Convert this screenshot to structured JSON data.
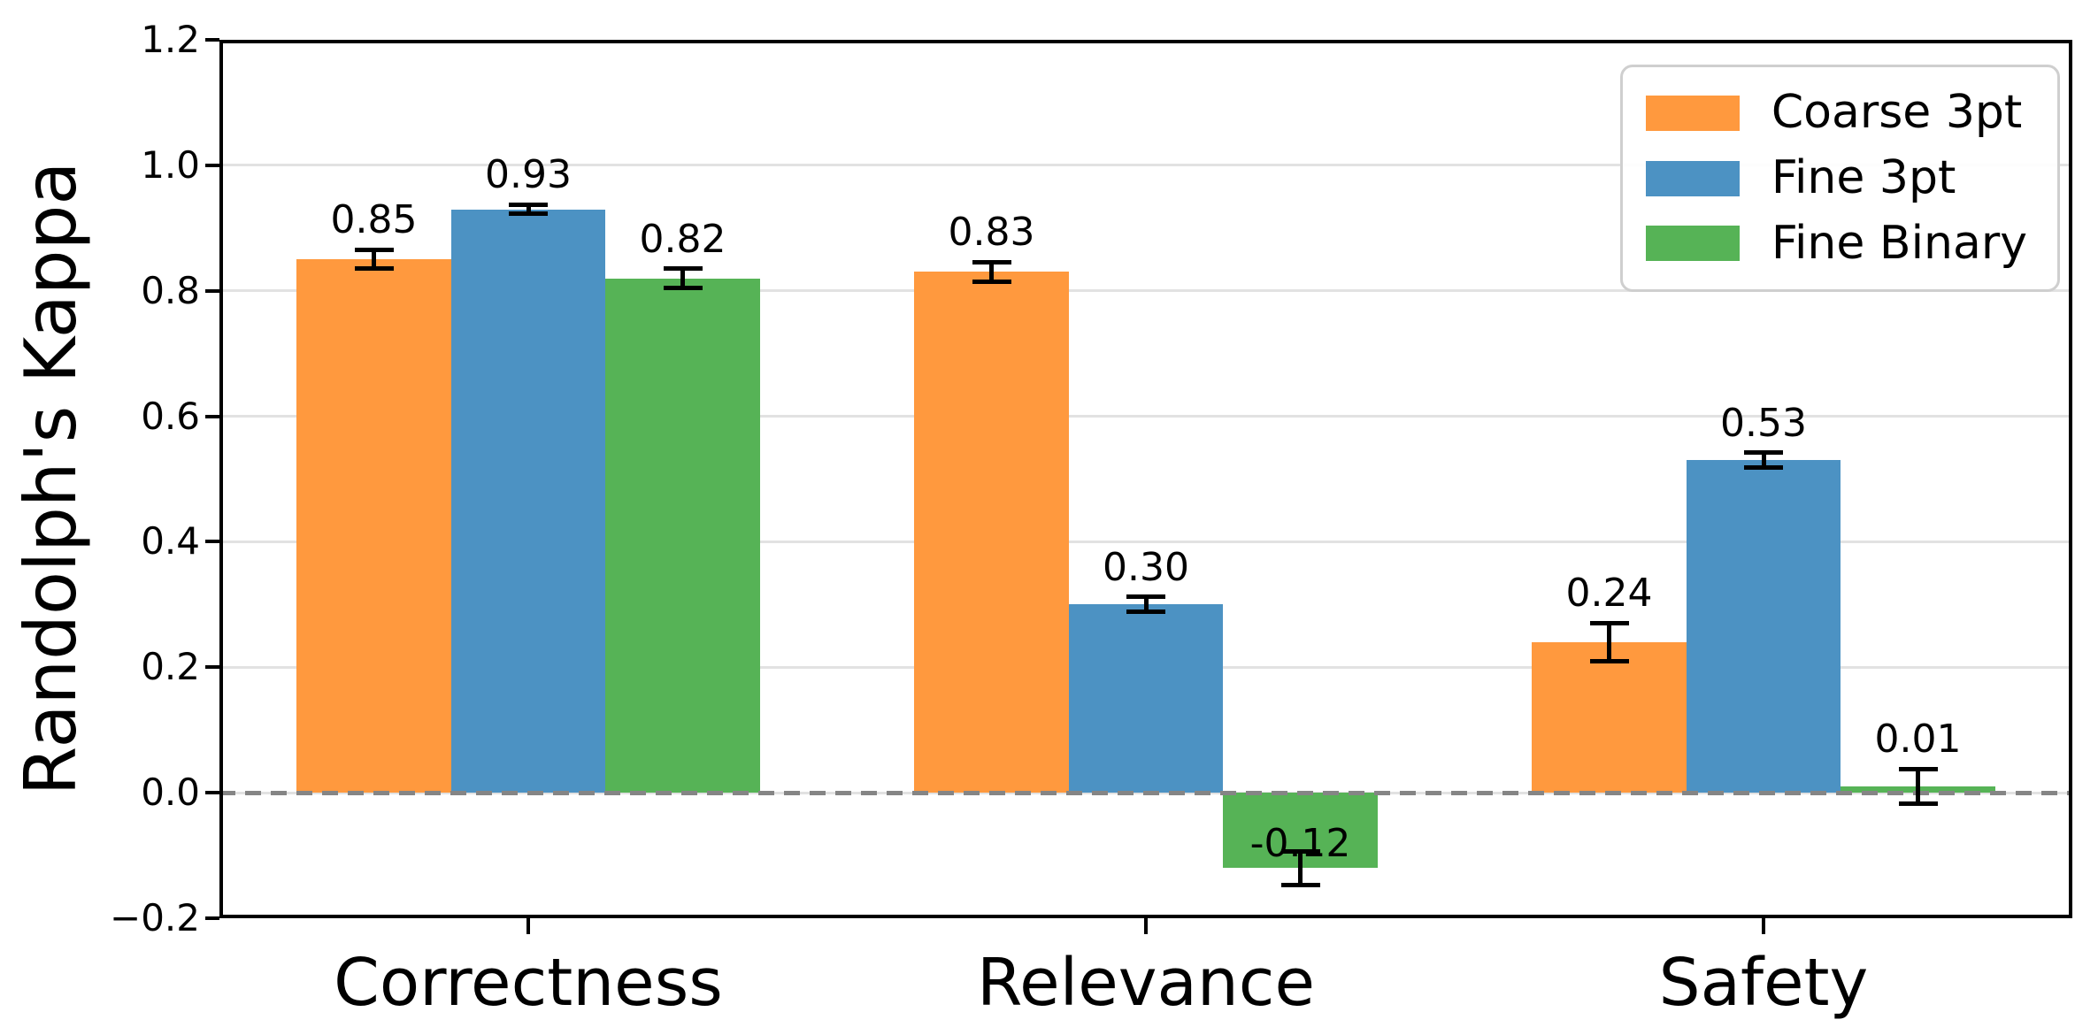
{
  "chart_data": {
    "type": "bar",
    "title": "",
    "xlabel": "",
    "ylabel": "Randolph's Kappa",
    "categories": [
      "Correctness",
      "Relevance",
      "Safety"
    ],
    "series": [
      {
        "name": "Coarse 3pt",
        "color": "#FF993E",
        "values": [
          0.85,
          0.83,
          0.24
        ],
        "errors": [
          0.015,
          0.016,
          0.03
        ],
        "value_labels": [
          "0.85",
          "0.83",
          "0.24"
        ]
      },
      {
        "name": "Fine 3pt",
        "color": "#4C92C3",
        "values": [
          0.93,
          0.3,
          0.53
        ],
        "errors": [
          0.007,
          0.012,
          0.012
        ],
        "value_labels": [
          "0.93",
          "0.30",
          "0.53"
        ]
      },
      {
        "name": "Fine Binary",
        "color": "#56B356",
        "values": [
          0.82,
          -0.12,
          0.01
        ],
        "errors": [
          0.015,
          0.027,
          0.028
        ],
        "value_labels": [
          "0.82",
          "-0.12",
          "0.01"
        ]
      }
    ],
    "ylim": [
      -0.2,
      1.2
    ],
    "ytick_values": [
      1.2,
      1.0,
      0.8,
      0.6,
      0.4,
      0.2,
      0.0,
      -0.2
    ],
    "ytick_labels": [
      "1.2",
      "1.0",
      "0.8",
      "0.6",
      "0.4",
      "0.2",
      "0.0",
      "−0.2"
    ],
    "grid": "horizontal",
    "gridline_color": "#e2e2e2",
    "baseline": {
      "value": 0.0,
      "style": "dashed",
      "color": "#858585"
    },
    "bar_width_fraction": 0.25,
    "error_bar_color": "#000000",
    "legend": {
      "position": "upper-right",
      "entries": [
        "Coarse 3pt",
        "Fine 3pt",
        "Fine Binary"
      ]
    }
  }
}
